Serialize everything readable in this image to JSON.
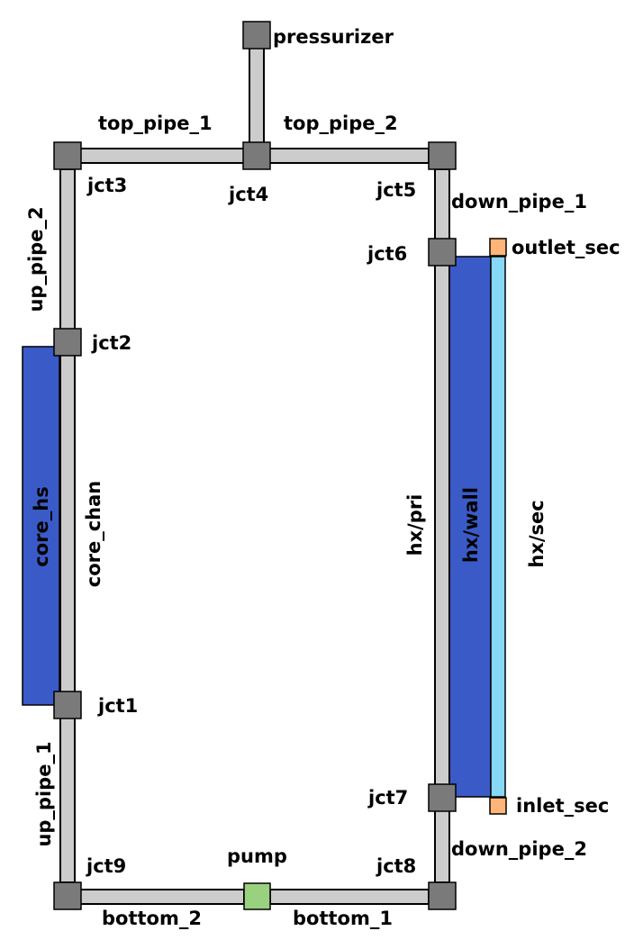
{
  "colors": {
    "pipe": "#cccccc",
    "junction": "#7a7a7a",
    "heat_structure": "#3a5bc7",
    "secondary_flow": "#87d7f7",
    "boundary": "#ffb577",
    "pump": "#9ad17f"
  },
  "labels": {
    "pressurizer": "pressurizer",
    "top_pipe_1": "top_pipe_1",
    "top_pipe_2": "top_pipe_2",
    "jct3": "jct3",
    "jct4": "jct4",
    "jct5": "jct5",
    "down_pipe_1": "down_pipe_1",
    "jct6": "jct6",
    "outlet_sec": "outlet_sec",
    "up_pipe_2": "up_pipe_2",
    "jct2": "jct2",
    "core_hs": "core_hs",
    "core_chan": "core_chan",
    "hx_pri": "hx/pri",
    "hx_wall": "hx/wall",
    "hx_sec": "hx/sec",
    "jct1": "jct1",
    "up_pipe_1": "up_pipe_1",
    "jct7": "jct7",
    "inlet_sec": "inlet_sec",
    "jct9": "jct9",
    "pump": "pump",
    "jct8": "jct8",
    "down_pipe_2": "down_pipe_2",
    "bottom_2": "bottom_2",
    "bottom_1": "bottom_1"
  }
}
